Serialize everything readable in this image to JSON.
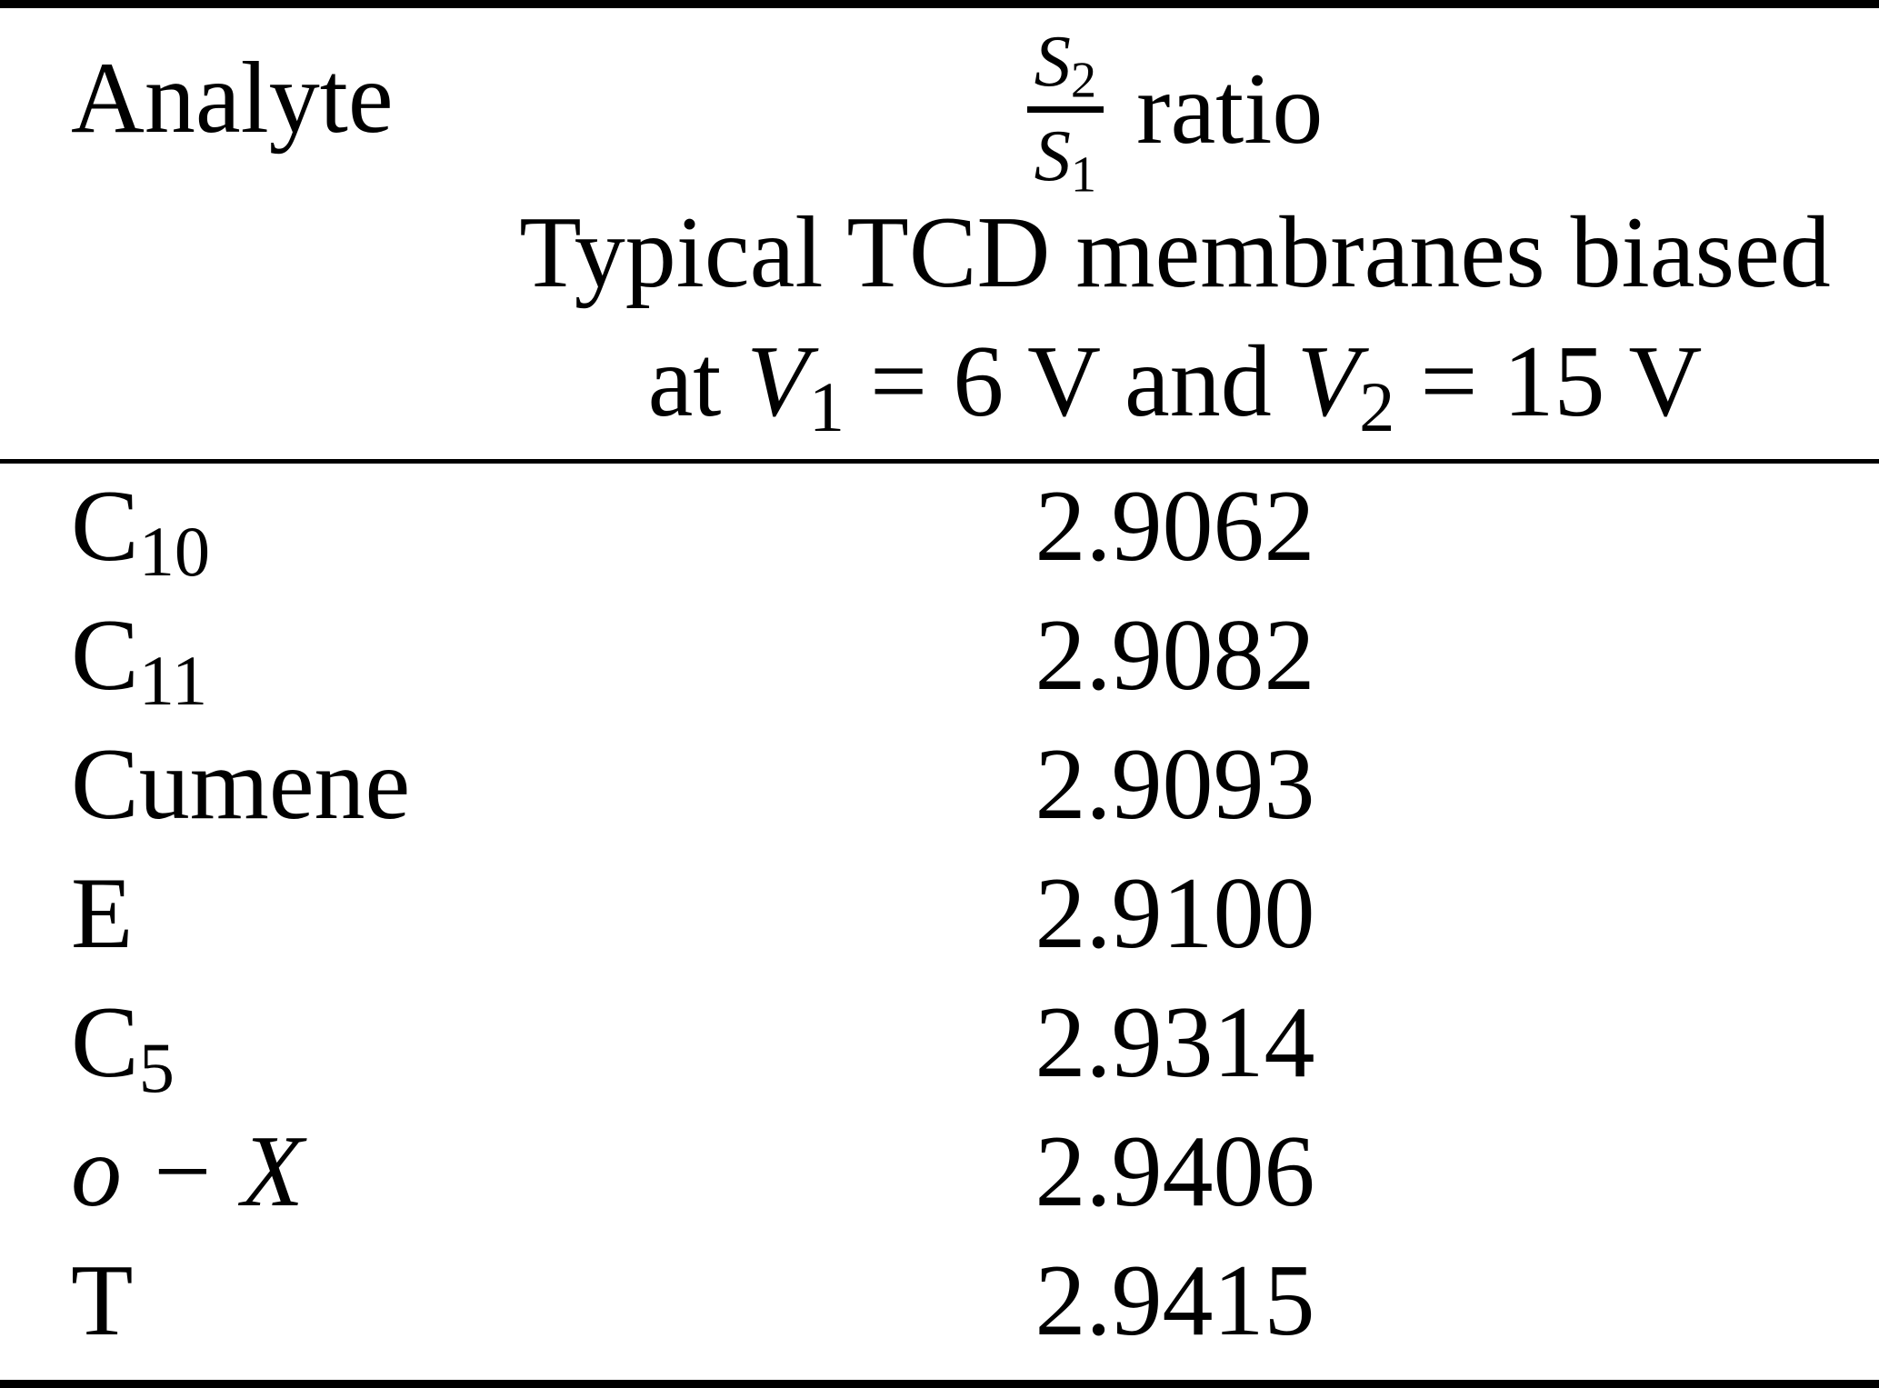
{
  "chart_data": {
    "type": "table",
    "columns": [
      "Analyte",
      "S2/S1 ratio — Typical TCD membranes biased at V1 = 6 V and V2 = 15 V"
    ],
    "rows": [
      [
        "C10",
        2.9062
      ],
      [
        "C11",
        2.9082
      ],
      [
        "Cumene",
        2.9093
      ],
      [
        "E",
        2.91
      ],
      [
        "C5",
        2.9314
      ],
      [
        "o − X",
        2.9406
      ],
      [
        "T",
        2.9415
      ]
    ]
  },
  "header": {
    "analyte": "Analyte",
    "frac_num_main": "S",
    "frac_num_sub": "2",
    "frac_den_main": "S",
    "frac_den_sub": "1",
    "ratio_word": "ratio",
    "line2": "Typical TCD membranes biased",
    "line3": {
      "t1": "at ",
      "v1": "V",
      "s1": "1",
      "t2": " = 6 V and ",
      "v2": "V",
      "s2": "2",
      "t3": " = 15 V"
    }
  },
  "rows": [
    {
      "main": "C",
      "sub": "10",
      "value": "2.9062"
    },
    {
      "main": "C",
      "sub": "11",
      "value": "2.9082"
    },
    {
      "main": "Cumene",
      "sub": "",
      "value": "2.9093"
    },
    {
      "main": "E",
      "sub": "",
      "value": "2.9100"
    },
    {
      "main": "C",
      "sub": "5",
      "value": "2.9314"
    },
    {
      "main": "o − X",
      "sub": "",
      "value": "2.9406",
      "italic": true
    },
    {
      "main": "T",
      "sub": "",
      "value": "2.9415"
    }
  ]
}
